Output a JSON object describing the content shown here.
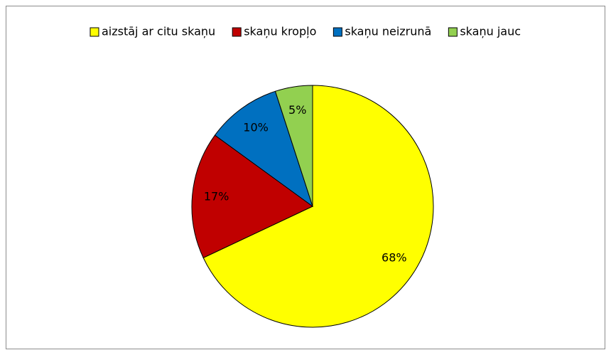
{
  "chart_data": {
    "type": "pie",
    "categories": [
      "aizstāj ar citu skaņu",
      "skaņu kropļo",
      "skaņu neizrunā",
      "skaņu jauc"
    ],
    "values": [
      68,
      17,
      10,
      5
    ],
    "value_labels": [
      "68%",
      "17%",
      "10%",
      "5%"
    ],
    "colors": [
      "#ffff00",
      "#c00000",
      "#0070c0",
      "#92d050"
    ],
    "legend": "top"
  }
}
